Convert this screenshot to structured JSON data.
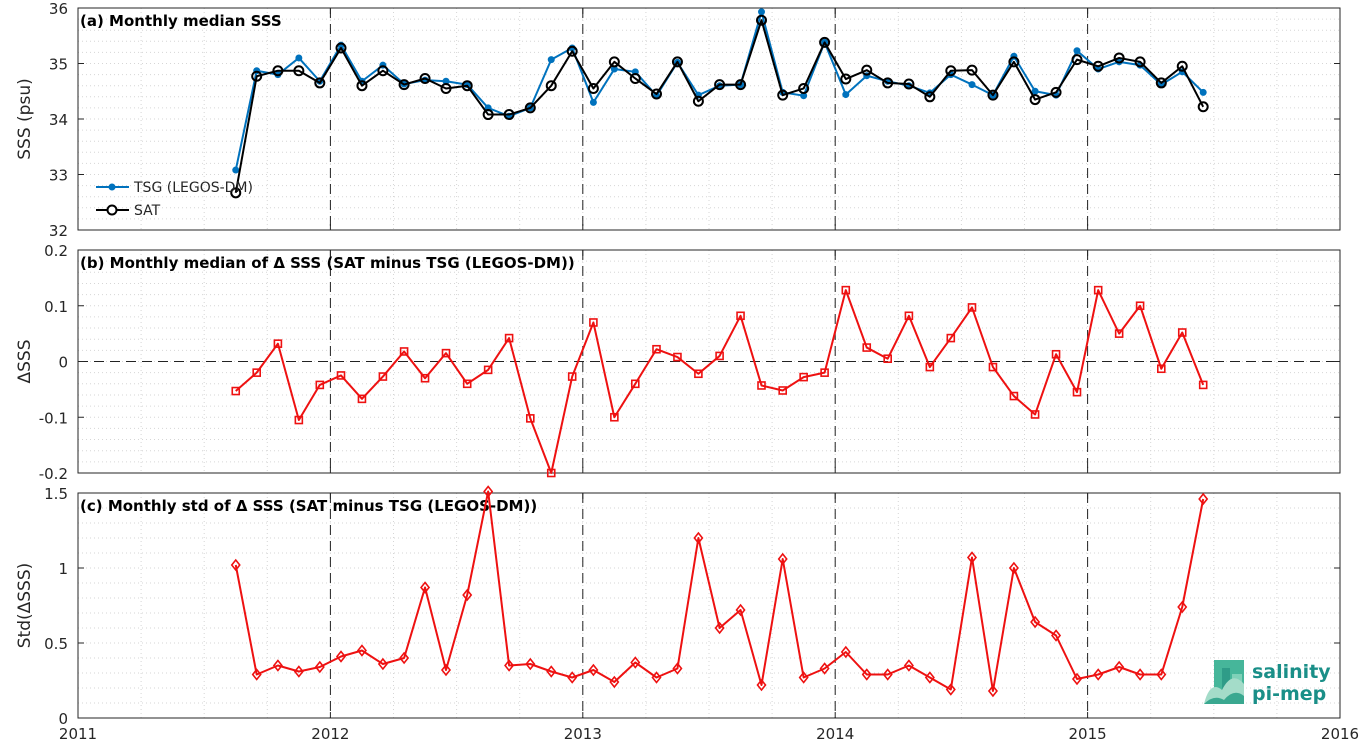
{
  "chart_data": [
    {
      "type": "line",
      "title": "(a) Monthly median SSS",
      "ylabel": "SSS (psu)",
      "xlim": [
        2011,
        2016
      ],
      "ylim": [
        32,
        36
      ],
      "yticks": [
        "32",
        "33",
        "34",
        "35",
        "36"
      ],
      "xticks": [
        "2011",
        "2012",
        "2013",
        "2014",
        "2015",
        "2016"
      ],
      "grid": "minor dotted, major dashed vertical at years",
      "legend_placement": "bottom-left",
      "series": [
        {
          "name": "TSG (LEGOS-DM)",
          "color": "#0072BD",
          "marker": "dot",
          "x": [
            2011.625,
            2011.708,
            2011.792,
            2011.875,
            2011.958,
            2012.042,
            2012.125,
            2012.208,
            2012.292,
            2012.375,
            2012.458,
            2012.542,
            2012.625,
            2012.708,
            2012.792,
            2012.875,
            2012.958,
            2013.042,
            2013.125,
            2013.208,
            2013.292,
            2013.375,
            2013.458,
            2013.542,
            2013.625,
            2013.708,
            2013.792,
            2013.875,
            2013.958,
            2014.042,
            2014.125,
            2014.208,
            2014.292,
            2014.375,
            2014.458,
            2014.542,
            2014.625,
            2014.708,
            2014.792,
            2014.875,
            2014.958,
            2015.042,
            2015.125,
            2015.208,
            2015.292,
            2015.375,
            2015.458
          ],
          "values": [
            33.08,
            34.87,
            34.8,
            35.1,
            34.68,
            35.33,
            34.68,
            34.97,
            34.63,
            34.7,
            34.68,
            34.62,
            34.2,
            34.05,
            34.2,
            35.07,
            35.28,
            34.3,
            34.9,
            34.85,
            34.42,
            35.02,
            34.43,
            34.6,
            34.62,
            35.93,
            34.48,
            34.42,
            35.38,
            34.44,
            34.78,
            34.68,
            34.6,
            34.47,
            34.8,
            34.62,
            34.43,
            35.13,
            34.5,
            34.43,
            35.23,
            34.9,
            35.03,
            34.97,
            34.62,
            34.85,
            34.48
          ]
        },
        {
          "name": "SAT",
          "color": "#000000",
          "marker": "circle",
          "x": [
            2011.625,
            2011.708,
            2011.792,
            2011.875,
            2011.958,
            2012.042,
            2012.125,
            2012.208,
            2012.292,
            2012.375,
            2012.458,
            2012.542,
            2012.625,
            2012.708,
            2012.792,
            2012.875,
            2012.958,
            2013.042,
            2013.125,
            2013.208,
            2013.292,
            2013.375,
            2013.458,
            2013.542,
            2013.625,
            2013.708,
            2013.792,
            2013.875,
            2013.958,
            2014.042,
            2014.125,
            2014.208,
            2014.292,
            2014.375,
            2014.458,
            2014.542,
            2014.625,
            2014.708,
            2014.792,
            2014.875,
            2014.958,
            2015.042,
            2015.125,
            2015.208,
            2015.292,
            2015.375,
            2015.458
          ],
          "values": [
            32.67,
            34.77,
            34.87,
            34.87,
            34.65,
            35.28,
            34.6,
            34.87,
            34.62,
            34.73,
            34.55,
            34.6,
            34.08,
            34.08,
            34.2,
            34.6,
            35.22,
            34.55,
            35.03,
            34.73,
            34.45,
            35.03,
            34.32,
            34.62,
            34.62,
            35.78,
            34.43,
            34.55,
            35.38,
            34.72,
            34.88,
            34.65,
            34.63,
            34.4,
            34.87,
            34.88,
            34.43,
            35.03,
            34.35,
            34.48,
            35.07,
            34.95,
            35.1,
            35.03,
            34.65,
            34.95,
            34.22
          ]
        }
      ]
    },
    {
      "type": "line",
      "title": "(b) Monthly median of Δ SSS (SAT minus TSG (LEGOS-DM))",
      "ylabel": "ΔSSS",
      "xlim": [
        2011,
        2016
      ],
      "ylim": [
        -0.2,
        0.2
      ],
      "yticks": [
        "-0.2",
        "-0.1",
        "0",
        "0.1",
        "0.2"
      ],
      "xticks": [
        "2011",
        "2012",
        "2013",
        "2014",
        "2015",
        "2016"
      ],
      "reference_line": 0,
      "series": [
        {
          "color": "#EE1111",
          "marker": "square",
          "x": [
            2011.625,
            2011.708,
            2011.792,
            2011.875,
            2011.958,
            2012.042,
            2012.125,
            2012.208,
            2012.292,
            2012.375,
            2012.458,
            2012.542,
            2012.625,
            2012.708,
            2012.792,
            2012.875,
            2012.958,
            2013.042,
            2013.125,
            2013.208,
            2013.292,
            2013.375,
            2013.458,
            2013.542,
            2013.625,
            2013.708,
            2013.792,
            2013.875,
            2013.958,
            2014.042,
            2014.125,
            2014.208,
            2014.292,
            2014.375,
            2014.458,
            2014.542,
            2014.625,
            2014.708,
            2014.792,
            2014.875,
            2014.958,
            2015.042,
            2015.125,
            2015.208,
            2015.292,
            2015.375,
            2015.458
          ],
          "values": [
            -0.053,
            -0.02,
            0.032,
            -0.105,
            -0.042,
            -0.025,
            -0.067,
            -0.027,
            0.018,
            -0.03,
            0.015,
            -0.04,
            -0.015,
            0.042,
            -0.102,
            -0.2,
            -0.027,
            0.07,
            -0.1,
            -0.04,
            0.022,
            0.008,
            -0.022,
            0.01,
            0.082,
            -0.043,
            -0.052,
            -0.028,
            -0.02,
            0.128,
            0.025,
            0.005,
            0.082,
            -0.01,
            0.042,
            0.097,
            -0.01,
            -0.062,
            -0.095,
            0.013,
            -0.055,
            0.128,
            0.05,
            0.1,
            -0.013,
            0.052,
            -0.042
          ]
        }
      ]
    },
    {
      "type": "line",
      "title": "(c) Monthly std of Δ SSS (SAT minus TSG (LEGOS-DM))",
      "ylabel": "Std(ΔSSS)",
      "xlim": [
        2011,
        2016
      ],
      "ylim": [
        0,
        1.5
      ],
      "yticks": [
        "0",
        "0.5",
        "1",
        "1.5"
      ],
      "xticks": [
        "2011",
        "2012",
        "2013",
        "2014",
        "2015",
        "2016"
      ],
      "series": [
        {
          "color": "#EE1111",
          "marker": "diamond",
          "x": [
            2011.625,
            2011.708,
            2011.792,
            2011.875,
            2011.958,
            2012.042,
            2012.125,
            2012.208,
            2012.292,
            2012.375,
            2012.458,
            2012.542,
            2012.625,
            2012.708,
            2012.792,
            2012.875,
            2012.958,
            2013.042,
            2013.125,
            2013.208,
            2013.292,
            2013.375,
            2013.458,
            2013.542,
            2013.625,
            2013.708,
            2013.792,
            2013.875,
            2013.958,
            2014.042,
            2014.125,
            2014.208,
            2014.292,
            2014.375,
            2014.458,
            2014.542,
            2014.625,
            2014.708,
            2014.792,
            2014.875,
            2014.958,
            2015.042,
            2015.125,
            2015.208,
            2015.292,
            2015.375,
            2015.458
          ],
          "values": [
            1.02,
            0.29,
            0.35,
            0.31,
            0.34,
            0.41,
            0.45,
            0.36,
            0.4,
            0.87,
            0.32,
            0.82,
            1.51,
            0.35,
            0.36,
            0.31,
            0.27,
            0.32,
            0.24,
            0.37,
            0.27,
            0.33,
            1.2,
            0.6,
            0.72,
            0.22,
            1.06,
            0.27,
            0.33,
            0.44,
            0.29,
            0.29,
            0.35,
            0.27,
            0.19,
            1.07,
            0.18,
            1.0,
            0.64,
            0.55,
            0.26,
            0.29,
            0.34,
            0.29,
            0.29,
            0.74,
            1.46
          ]
        }
      ]
    }
  ],
  "logo": {
    "line1": "salinity",
    "line2": "pi-mep"
  }
}
